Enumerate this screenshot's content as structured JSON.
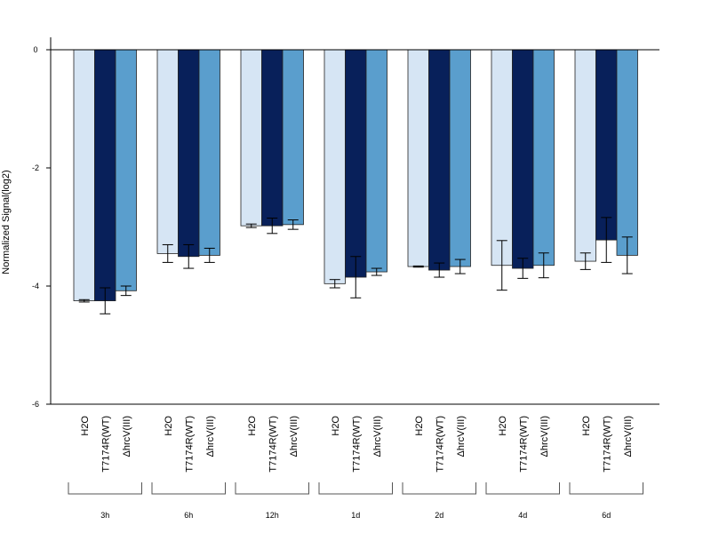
{
  "chart_data": {
    "type": "bar",
    "title": "",
    "xlabel": "",
    "ylabel": "Normalized Signal(log2)",
    "ylim": [
      -6,
      0.2
    ],
    "yticks": [
      0,
      -2,
      -4,
      -6
    ],
    "ytick_labels": [
      "0",
      "-2",
      "-4",
      "-6"
    ],
    "grid": false,
    "series_names": [
      "H2O",
      "T7174R(WT)",
      "ΔhrcV(III)"
    ],
    "series_colors": [
      "#d6e5f4",
      "#08205a",
      "#5a9ecd"
    ],
    "groups": [
      {
        "label": "3h",
        "values": [
          -4.25,
          -4.25,
          -4.08
        ],
        "errors": [
          0.02,
          0.22,
          0.08
        ]
      },
      {
        "label": "6h",
        "values": [
          -3.45,
          -3.5,
          -3.48
        ],
        "errors": [
          0.15,
          0.2,
          0.12
        ]
      },
      {
        "label": "12h",
        "values": [
          -2.98,
          -2.98,
          -2.96
        ],
        "errors": [
          0.03,
          0.13,
          0.08
        ]
      },
      {
        "label": "1d",
        "values": [
          -3.96,
          -3.85,
          -3.76
        ],
        "errors": [
          0.07,
          0.35,
          0.06
        ]
      },
      {
        "label": "2d",
        "values": [
          -3.67,
          -3.73,
          -3.67
        ],
        "errors": [
          0.01,
          0.12,
          0.12
        ]
      },
      {
        "label": "4d",
        "values": [
          -3.65,
          -3.7,
          -3.65
        ],
        "errors": [
          0.42,
          0.17,
          0.21
        ]
      },
      {
        "label": "6d",
        "values": [
          -3.58,
          -3.22,
          -3.48
        ],
        "errors": [
          0.14,
          0.38,
          0.31
        ]
      }
    ]
  }
}
